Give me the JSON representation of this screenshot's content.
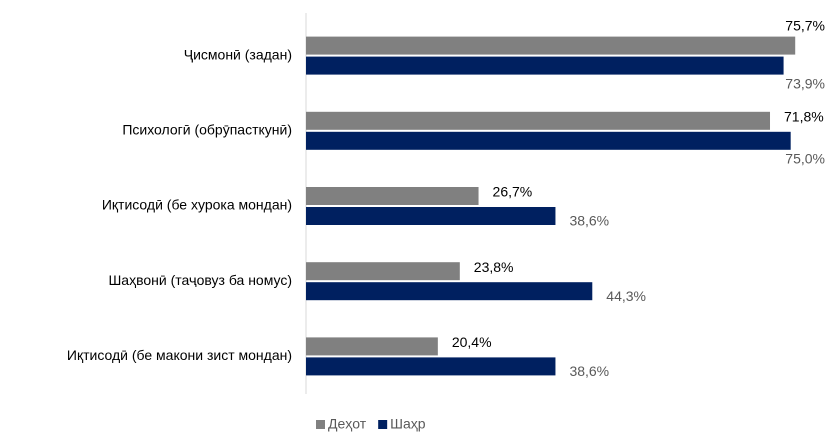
{
  "chart_data": {
    "type": "bar",
    "orientation": "horizontal",
    "categories": [
      "Ҷисмонӣ (задан)",
      "Психологӣ (обрӯпасткунӣ)",
      "Иқтисодӣ (бе хурока мондан)",
      "Шаҳвонӣ (таҷовуз ба номус)",
      "Иқтисодӣ (бе макони зист мондан)"
    ],
    "series": [
      {
        "name": "Деҳот",
        "color": "#808080",
        "label_color": "#000000",
        "values": [
          75.7,
          71.8,
          26.7,
          23.8,
          20.4
        ],
        "value_labels": [
          "75,7%",
          "71,8%",
          "26,7%",
          "23,8%",
          "20,4%"
        ]
      },
      {
        "name": "Шаҳр",
        "color": "#002060",
        "label_color": "#595959",
        "values": [
          73.9,
          75.0,
          38.6,
          44.3,
          38.6
        ],
        "value_labels": [
          "73,9%",
          "75,0%",
          "38,6%",
          "44,3%",
          "38,6%"
        ]
      }
    ],
    "xlim": [
      0,
      80
    ],
    "legend": "bottom"
  }
}
